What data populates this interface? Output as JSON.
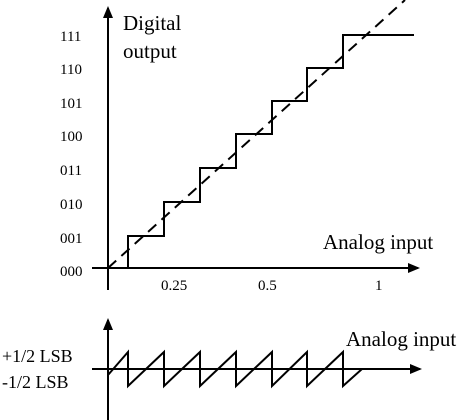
{
  "transfer_plot": {
    "y_axis_title_line1": "Digital",
    "y_axis_title_line2": "output",
    "x_axis_title": "Analog input",
    "codes": [
      "000",
      "001",
      "010",
      "011",
      "100",
      "101",
      "110",
      "111"
    ],
    "x_ticks": [
      "0.25",
      "0.5",
      "1"
    ]
  },
  "error_plot": {
    "x_axis_title": "Analog input",
    "upper_label": "+1/2 LSB",
    "lower_label": "-1/2 LSB"
  },
  "colors": {
    "stroke": "#000000",
    "background": "#ffffff"
  }
}
